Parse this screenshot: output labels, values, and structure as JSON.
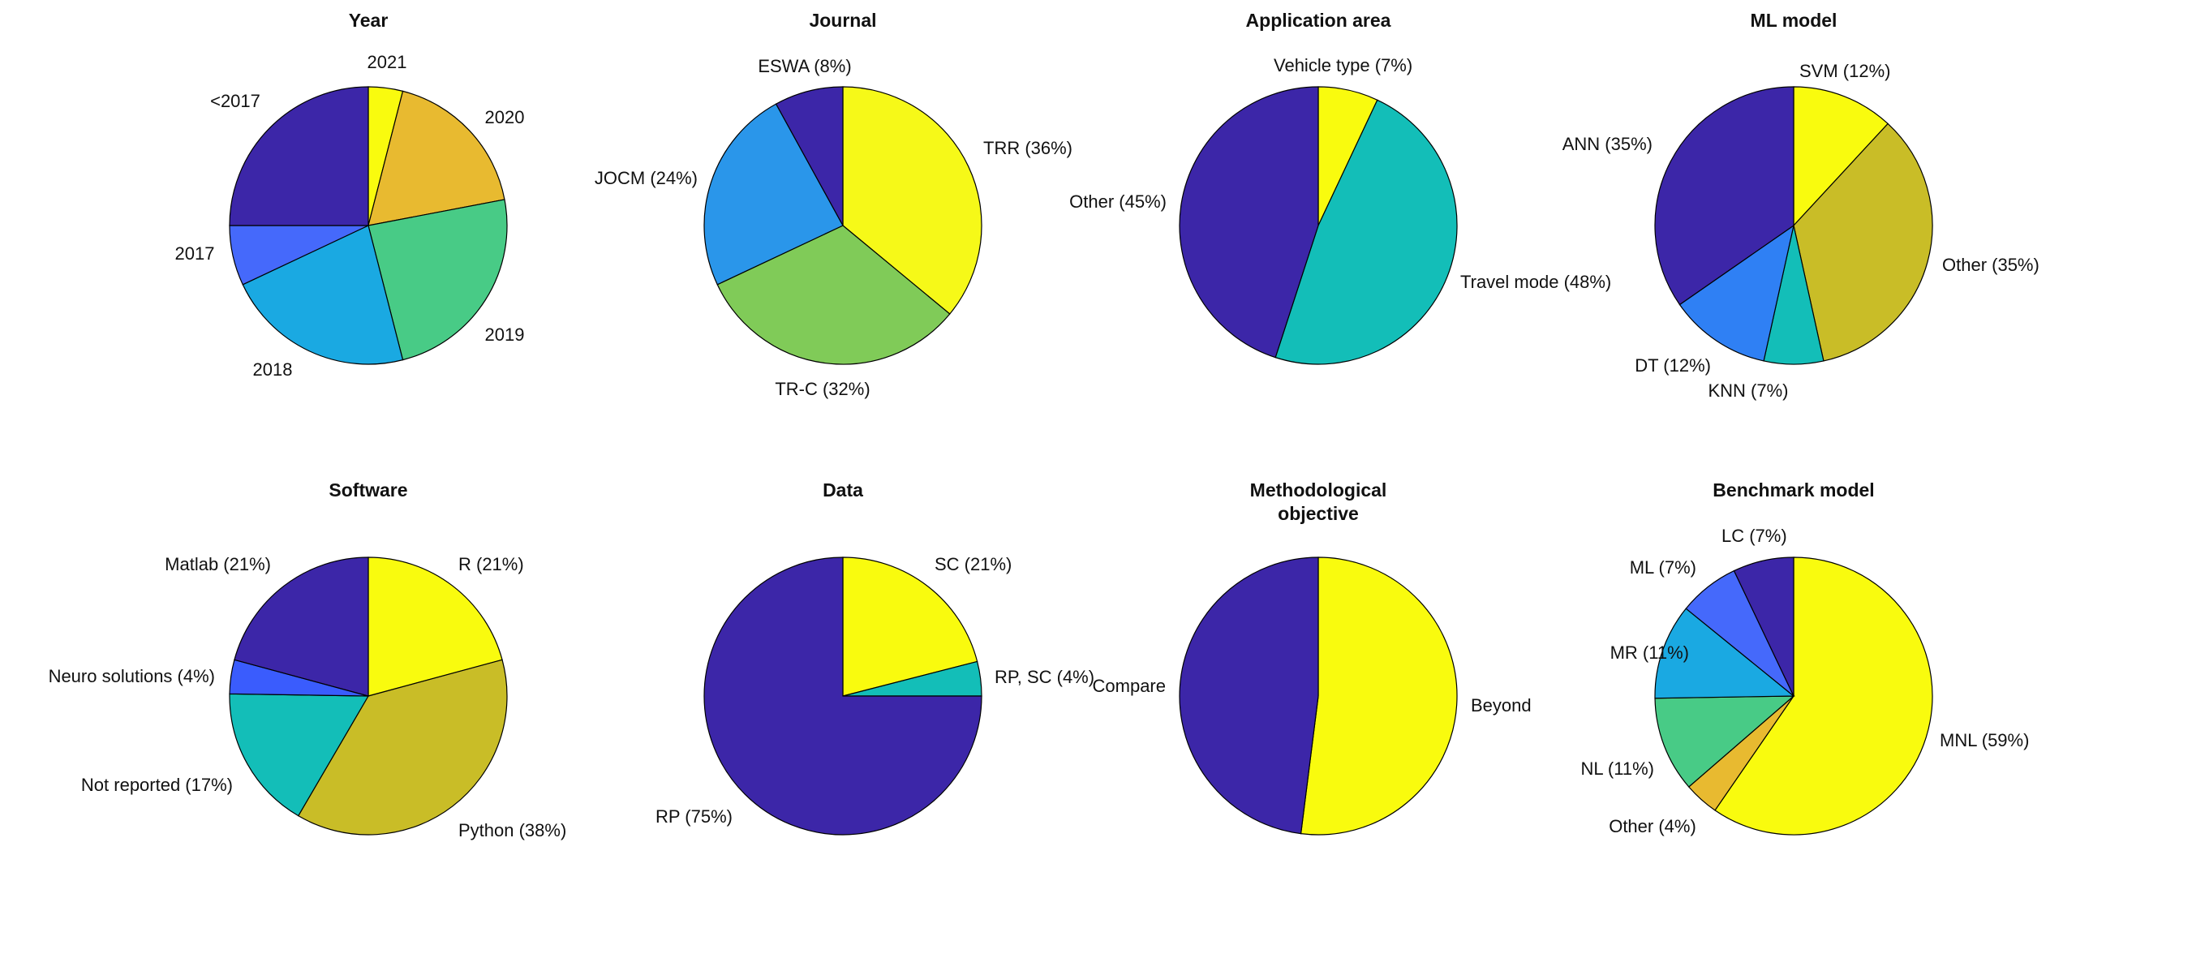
{
  "chart_data": [
    {
      "type": "pie",
      "title": [
        "Year"
      ],
      "slices": [
        {
          "label": "2021",
          "value": 4,
          "color": "#f9fb0e"
        },
        {
          "label": "2020",
          "value": 18,
          "color": "#e8ba30"
        },
        {
          "label": "2019",
          "value": 24,
          "color": "#48cb86"
        },
        {
          "label": "2018",
          "value": 22,
          "color": "#1aa9e2"
        },
        {
          "label": "2017",
          "value": 7,
          "color": "#4569fb"
        },
        {
          "label": "<2017",
          "value": 25,
          "color": "#3c26a8"
        }
      ]
    },
    {
      "type": "pie",
      "title": [
        "Journal"
      ],
      "slices": [
        {
          "label": "TRR (36%)",
          "value": 36,
          "color": "#f6f918"
        },
        {
          "label": "TR-C (32%)",
          "value": 32,
          "color": "#80cb58"
        },
        {
          "label": "JOCM (24%)",
          "value": 24,
          "color": "#2a96ea"
        },
        {
          "label": "ESWA  (8%)",
          "value": 8,
          "color": "#3c26a8"
        }
      ]
    },
    {
      "type": "pie",
      "title": [
        "Application area"
      ],
      "slices": [
        {
          "label": "Vehicle type  (7%)",
          "value": 7,
          "color": "#f9fb0e"
        },
        {
          "label": "Travel mode (48%)",
          "value": 48,
          "color": "#13beb8"
        },
        {
          "label": "Other (45%)",
          "value": 45,
          "color": "#3c26a8"
        }
      ]
    },
    {
      "type": "pie",
      "title": [
        "ML model"
      ],
      "slices": [
        {
          "label": "SVM (12%)",
          "value": 12,
          "color": "#f9fb0e"
        },
        {
          "label": "Other (35%)",
          "value": 35,
          "color": "#c9bd27"
        },
        {
          "label": "KNN  (7%)",
          "value": 7,
          "color": "#13beb8"
        },
        {
          "label": "DT (12%)",
          "value": 12,
          "color": "#2f80f4"
        },
        {
          "label": "ANN (35%)",
          "value": 35,
          "color": "#3c26a8"
        }
      ]
    },
    {
      "type": "pie",
      "title": [
        "Software"
      ],
      "slices": [
        {
          "label": "R (21%)",
          "value": 21,
          "color": "#f9fb0e"
        },
        {
          "label": "Python (38%)",
          "value": 38,
          "color": "#c9bd27"
        },
        {
          "label": "Not reported (17%)",
          "value": 17,
          "color": "#13beb8"
        },
        {
          "label": "Neuro solutions  (4%)",
          "value": 4,
          "color": "#3a5cfd"
        },
        {
          "label": "Matlab (21%)",
          "value": 21,
          "color": "#3c26a8"
        }
      ]
    },
    {
      "type": "pie",
      "title": [
        "Data"
      ],
      "slices": [
        {
          "label": "SC (21%)",
          "value": 21,
          "color": "#f9fb0e"
        },
        {
          "label": "RP, SC  (4%)",
          "value": 4,
          "color": "#13beb8"
        },
        {
          "label": "RP (75%)",
          "value": 75,
          "color": "#3c26a8"
        }
      ]
    },
    {
      "type": "pie",
      "title": [
        "Methodological",
        "objective"
      ],
      "slices": [
        {
          "label": "Beyond",
          "value": 52,
          "color": "#f9fb0e"
        },
        {
          "label": "Compare",
          "value": 48,
          "color": "#3c26a8"
        }
      ]
    },
    {
      "type": "pie",
      "title": [
        "Benchmark model"
      ],
      "slices": [
        {
          "label": "MNL (59%)",
          "value": 59,
          "color": "#f9fb0e"
        },
        {
          "label": "Other  (4%)",
          "value": 4,
          "color": "#e8ba30"
        },
        {
          "label": "NL (11%)",
          "value": 11,
          "color": "#48cb86"
        },
        {
          "label": "MR (11%)",
          "value": 11,
          "color": "#1aa9e2"
        },
        {
          "label": "ML  (7%)",
          "value": 7,
          "color": "#4569fb"
        },
        {
          "label": "LC  (7%)",
          "value": 7,
          "color": "#3c26a8"
        }
      ]
    }
  ]
}
